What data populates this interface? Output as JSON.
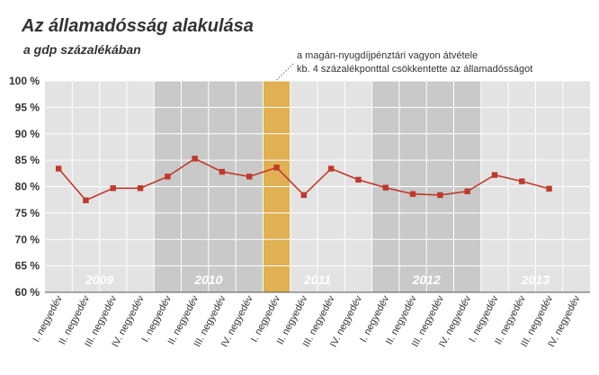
{
  "chart_data": {
    "type": "line",
    "title": "Az államadósság alakulása",
    "subtitle": "a gdp százalékában",
    "annotation": [
      "a magán-nyugdíjpénztári vagyon átvétele",
      "kb. 4 százalékponttal csökkentette az államadósságot"
    ],
    "x": [
      "I. negyedév",
      "II. negyedév",
      "III. negyedév",
      "IV. negyedév",
      "I. negyedév",
      "II. negyedév",
      "III. negyedév",
      "IV. negyedév",
      "I. negyedév",
      "II. negyedév",
      "III. negyedév",
      "IV. negyedév",
      "I. negyedév",
      "II. negyedév",
      "III. negyedév",
      "IV. negyedév",
      "I. negyedév",
      "II. negyedév",
      "III. negyedév",
      "IV. negyedév"
    ],
    "years": [
      "2009",
      "2010",
      "2011",
      "2012",
      "2013"
    ],
    "series": [
      {
        "values": [
          83.4,
          77.4,
          79.7,
          79.7,
          81.9,
          85.3,
          82.8,
          81.9,
          83.6,
          78.4,
          83.4,
          81.3,
          79.8,
          78.6,
          78.4,
          79.1,
          82.2,
          81.0,
          79.6,
          null
        ],
        "color": "#c0392b"
      }
    ],
    "ylim": [
      60,
      100
    ],
    "yticks": [
      "60 %",
      "65 %",
      "70 %",
      "75 %",
      "80 %",
      "85 %",
      "90 %",
      "95 %",
      "100 %"
    ],
    "highlight_index": 8,
    "colors": {
      "band_light": "#e3e3e3",
      "band_dark": "#c9c9c9",
      "highlight": "#e0b053",
      "year_label": "#ffffff",
      "line": "#c0392b"
    },
    "grid": true
  }
}
